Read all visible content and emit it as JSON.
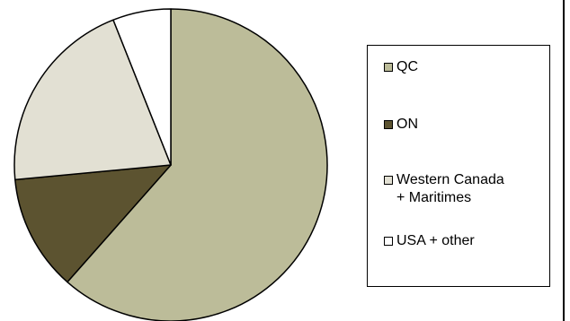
{
  "chart_data": {
    "type": "pie",
    "title": "",
    "series": [
      {
        "name": "QC",
        "value": 61.5,
        "color": "#bcbc99"
      },
      {
        "name": "ON",
        "value": 12.0,
        "color": "#5c5330"
      },
      {
        "name": "Western Canada\n+ Maritimes",
        "value": 20.5,
        "color": "#e2e0d3"
      },
      {
        "name": "USA + other",
        "value": 6.0,
        "color": "#ffffff"
      }
    ],
    "legend_position": "right"
  }
}
